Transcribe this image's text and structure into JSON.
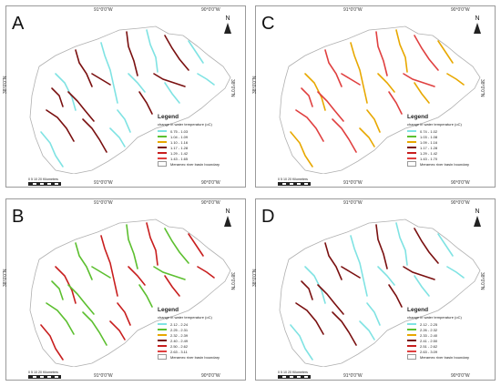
{
  "panels": [
    {
      "letter": "A",
      "coords": {
        "top_left": "91°0'0\"W",
        "top_right": "90°0'0\"W",
        "bottom_left": "91°0'0\"W",
        "bottom_right": "90°0'0\"W",
        "left": "38°0'0\"N",
        "right": "38°0'0\"N"
      },
      "north": "N",
      "legend": {
        "title": "Legend",
        "subtitle": "change in water temperature (oC)",
        "entries": [
          {
            "label": "0.75 - 1.03",
            "color": "#7fe3e3"
          },
          {
            "label": "1.04 - 1.09",
            "color": "#5cbf2f"
          },
          {
            "label": "1.10 - 1.16",
            "color": "#e8a800"
          },
          {
            "label": "1.17 - 1.28",
            "color": "#7a1010"
          },
          {
            "label": "1.29 - 1.42",
            "color": "#c81e1e"
          },
          {
            "label": "1.43 - 1.65",
            "color": "#e04040"
          }
        ],
        "boundary": "Meramec river basin boundary"
      },
      "scale": "0  5  10       20 Kilometers"
    },
    {
      "letter": "C",
      "coords": {
        "top_left": "91°0'0\"W",
        "top_right": "90°0'0\"W",
        "bottom_left": "91°0'0\"W",
        "bottom_right": "90°0'0\"W",
        "left": "38°0'0\"N",
        "right": "38°0'0\"N"
      },
      "north": "N",
      "legend": {
        "title": "Legend",
        "subtitle": "change in water temperature (oC)",
        "entries": [
          {
            "label": "0.74 - 1.02",
            "color": "#7fe3e3"
          },
          {
            "label": "1.03 - 1.08",
            "color": "#5cbf2f"
          },
          {
            "label": "1.09 - 1.16",
            "color": "#e8a800"
          },
          {
            "label": "1.17 - 1.28",
            "color": "#7a1010"
          },
          {
            "label": "1.29 - 1.42",
            "color": "#c81e1e"
          },
          {
            "label": "1.43 - 1.70",
            "color": "#e04040"
          }
        ],
        "boundary": "Meramec river basin boundary"
      },
      "scale": "0  5  10       20 Kilometers"
    },
    {
      "letter": "B",
      "coords": {
        "top_left": "91°0'0\"W",
        "top_right": "90°0'0\"W",
        "bottom_left": "91°0'0\"W",
        "bottom_right": "90°0'0\"W",
        "left": "38°0'0\"N",
        "right": "38°0'0\"N"
      },
      "north": "N",
      "legend": {
        "title": "Legend",
        "subtitle": "change in water temperature (oC)",
        "entries": [
          {
            "label": "2.12 - 2.24",
            "color": "#7fe3e3"
          },
          {
            "label": "2.25 - 2.31",
            "color": "#5cbf2f"
          },
          {
            "label": "2.32 - 2.39",
            "color": "#e8a800"
          },
          {
            "label": "2.40 - 2.49",
            "color": "#7a1010"
          },
          {
            "label": "2.50 - 2.62",
            "color": "#c81e1e"
          },
          {
            "label": "2.63 - 3.11",
            "color": "#e04040"
          }
        ],
        "boundary": "Meramec river basin boundary"
      },
      "scale": "0  5  10       20 Kilometers"
    },
    {
      "letter": "D",
      "coords": {
        "top_left": "91°0'0\"W",
        "top_right": "90°0'0\"W",
        "bottom_left": "91°0'0\"W",
        "bottom_right": "90°0'0\"W",
        "left": "38°0'0\"N",
        "right": "38°0'0\"N"
      },
      "north": "N",
      "legend": {
        "title": "Legend",
        "subtitle": "change in water temperature (oC)",
        "entries": [
          {
            "label": "2.12 - 2.25",
            "color": "#7fe3e3"
          },
          {
            "label": "2.26 - 2.32",
            "color": "#5cbf2f"
          },
          {
            "label": "2.33 - 2.40",
            "color": "#e8a800"
          },
          {
            "label": "2.41 - 2.50",
            "color": "#7a1010"
          },
          {
            "label": "2.51 - 2.62",
            "color": "#c81e1e"
          },
          {
            "label": "2.63 - 3.09",
            "color": "#e04040"
          }
        ],
        "boundary": "Meramec river basin boundary"
      },
      "scale": "0  5  10       20 Kilometers"
    }
  ]
}
